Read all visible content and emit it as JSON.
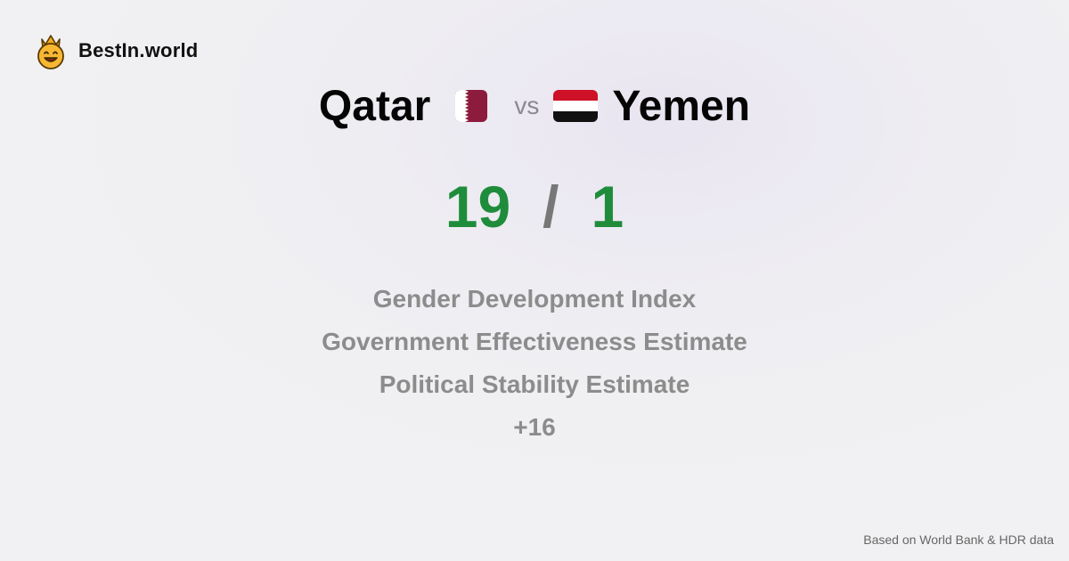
{
  "brand": {
    "name": "BestIn.world",
    "logo_icon": "crowned-smiley-icon"
  },
  "comparison": {
    "left": {
      "country": "Qatar",
      "flag_icon": "qatar-flag-icon",
      "score": "19"
    },
    "vs_label": "vs",
    "right": {
      "country": "Yemen",
      "flag_icon": "yemen-flag-icon",
      "score": "1"
    },
    "separator": "/"
  },
  "metrics": [
    "Gender Development Index",
    "Government Effectiveness Estimate",
    "Political Stability Estimate"
  ],
  "more_label": "+16",
  "footer": {
    "source": "Based on World Bank & HDR data"
  },
  "colors": {
    "score_green": "#1f8c3b",
    "muted_gray": "#8c8c8c",
    "qatar_maroon": "#8d1b3d"
  }
}
